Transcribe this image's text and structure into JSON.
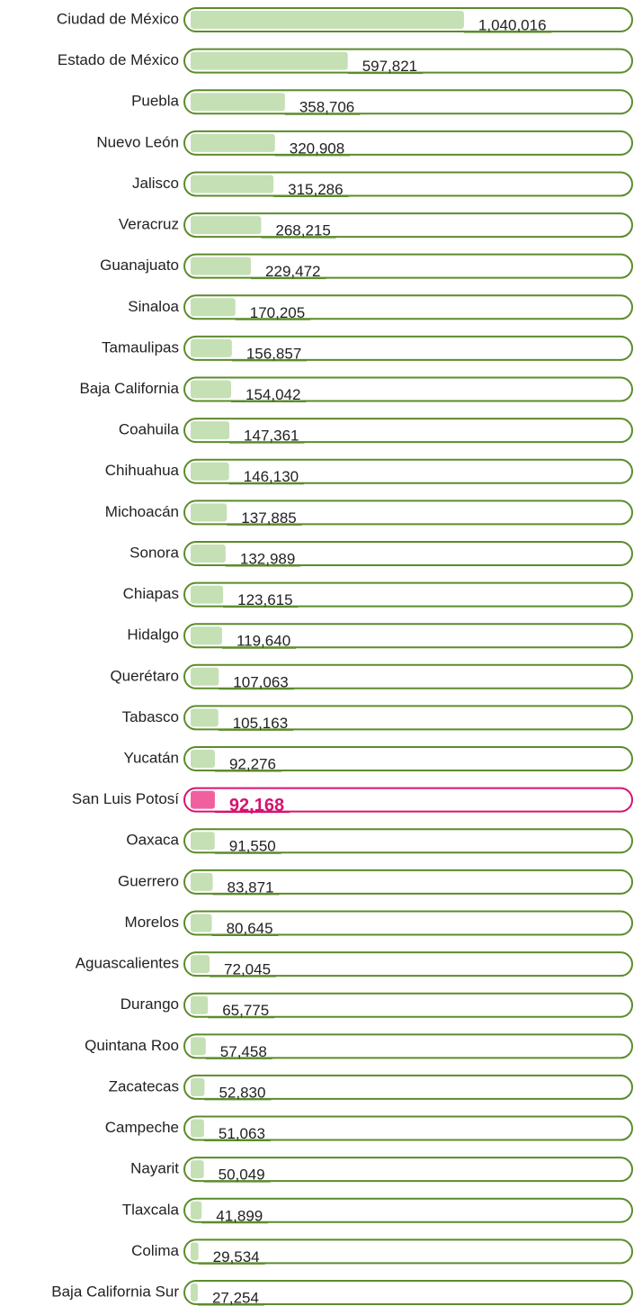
{
  "chart_data": {
    "type": "bar",
    "orientation": "horizontal",
    "categories": [
      "Ciudad de México",
      "Estado de México",
      "Puebla",
      "Nuevo León",
      "Jalisco",
      "Veracruz",
      "Guanajuato",
      "Sinaloa",
      "Tamaulipas",
      "Baja California",
      "Coahuila",
      "Chihuahua",
      "Michoacán",
      "Sonora",
      "Chiapas",
      "Hidalgo",
      "Querétaro",
      "Tabasco",
      "Yucatán",
      "San Luis Potosí",
      "Oaxaca",
      "Guerrero",
      "Morelos",
      "Aguascalientes",
      "Durango",
      "Quintana Roo",
      "Zacatecas",
      "Campeche",
      "Nayarit",
      "Tlaxcala",
      "Colima",
      "Baja California Sur"
    ],
    "values": [
      1040016,
      597821,
      358706,
      320908,
      315286,
      268215,
      229472,
      170205,
      156857,
      154042,
      147361,
      146130,
      137885,
      132989,
      123615,
      119640,
      107063,
      105163,
      92276,
      92168,
      91550,
      83871,
      80645,
      72045,
      65775,
      57458,
      52830,
      51063,
      50049,
      41899,
      29534,
      27254
    ],
    "value_labels": [
      "1,040,016",
      "597,821",
      "358,706",
      "320,908",
      "315,286",
      "268,215",
      "229,472",
      "170,205",
      "156,857",
      "154,042",
      "147,361",
      "146,130",
      "137,885",
      "132,989",
      "123,615",
      "119,640",
      "107,063",
      "105,163",
      "92,276",
      "92,168",
      "91,550",
      "83,871",
      "80,645",
      "72,045",
      "65,775",
      "57,458",
      "52,830",
      "51,063",
      "50,049",
      "41,899",
      "29,534",
      "27,254"
    ],
    "xlim": [
      0,
      1670000
    ],
    "color": "#c5e0b4",
    "track_color": "#5b8c2a",
    "highlight": "San Luis Potosí",
    "highlight_color": "#f0609e",
    "highlight_track_color": "#d6136f",
    "highlight_text_color": "#d6136f"
  }
}
